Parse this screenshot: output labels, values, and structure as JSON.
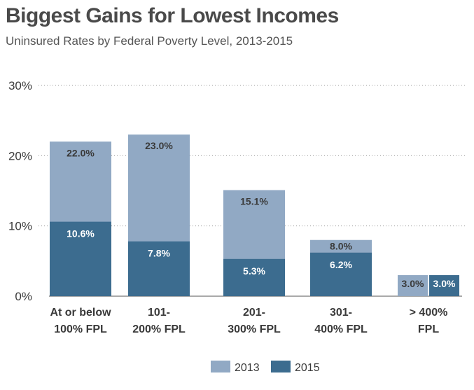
{
  "header": {
    "title": "Biggest Gains for Lowest Incomes",
    "subtitle": "Uninsured Rates by Federal Poverty Level, 2013-2015"
  },
  "colors": {
    "series_2013": "#91a9c4",
    "series_2015": "#3c6c8f",
    "grid": "#9a9a9a",
    "label_on_light": "#3a3a3a",
    "label_on_dark": "#ffffff"
  },
  "chart_data": {
    "type": "bar",
    "title": "Biggest Gains for Lowest Incomes",
    "subtitle": "Uninsured Rates by Federal Poverty Level, 2013-2015",
    "categories": [
      [
        "At or below",
        "100% FPL"
      ],
      [
        "101-",
        "200% FPL"
      ],
      [
        "201-",
        "300% FPL"
      ],
      [
        "301-",
        "400% FPL"
      ],
      [
        "> 400%",
        "FPL"
      ]
    ],
    "series": [
      {
        "name": "2013",
        "values": [
          22.0,
          23.0,
          15.1,
          8.0,
          3.0
        ],
        "labels": [
          "22.0%",
          "23.0%",
          "15.1%",
          "8.0%",
          "3.0%"
        ]
      },
      {
        "name": "2015",
        "values": [
          10.6,
          7.8,
          5.3,
          6.2,
          3.0
        ],
        "labels": [
          "10.6%",
          "7.8%",
          "5.3%",
          "6.2%",
          "3.0%"
        ]
      }
    ],
    "ylim": [
      0,
      30
    ],
    "yticks": [
      0,
      10,
      20,
      30
    ],
    "ytick_labels": [
      "0%",
      "10%",
      "20%",
      "30%"
    ],
    "grid": "dotted horizontal",
    "legend": "bottom-center",
    "layout": "overlaid bars; last category side-by-side"
  }
}
